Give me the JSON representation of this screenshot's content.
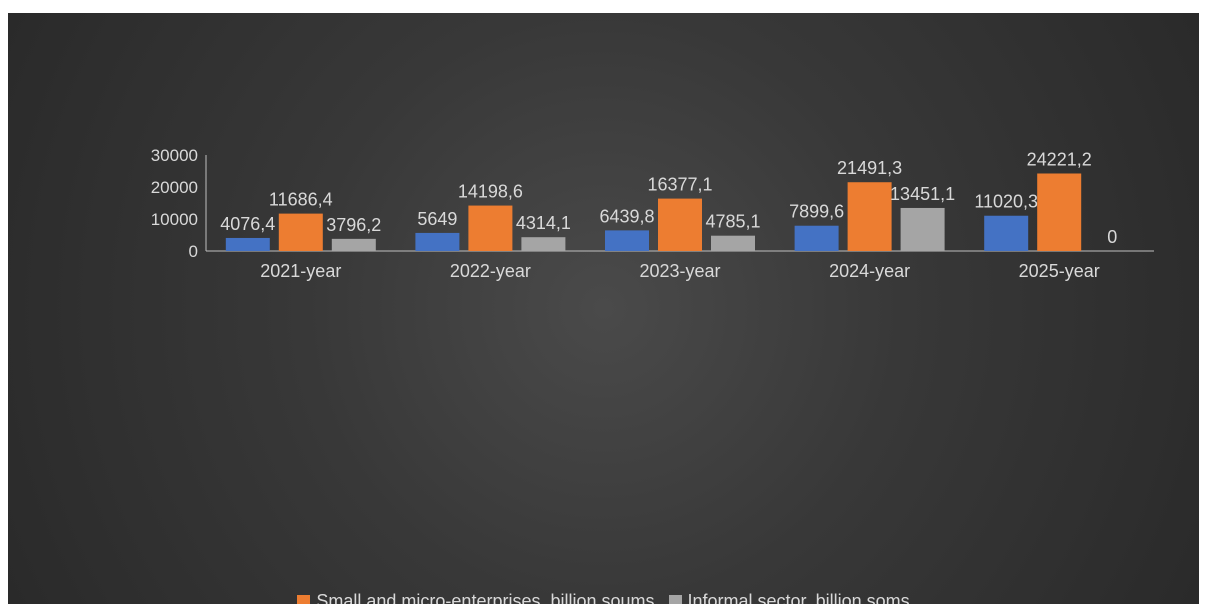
{
  "chart_data": {
    "type": "bar",
    "title": "",
    "xlabel": "",
    "ylabel": "",
    "categories": [
      "2021-year",
      "2022-year",
      "2023-year",
      "2024-year",
      "2025-year"
    ],
    "series": [
      {
        "values": [
          4076.4,
          5649,
          6439.8,
          7899.6,
          11020.3
        ],
        "labels": [
          "4076,4",
          "5649",
          "6439,8",
          "7899,6",
          "11020,3"
        ],
        "color": "#4472c4"
      },
      {
        "name": "Small and micro-enterprises, billion soums",
        "values": [
          11686.4,
          14198.6,
          16377.1,
          21491.3,
          24221.2
        ],
        "labels": [
          "11686,4",
          "14198,6",
          "16377,1",
          "21491,3",
          "24221,2"
        ],
        "color": "#ed7d31"
      },
      {
        "name": "Informal sector, billion soms",
        "values": [
          3796.2,
          4314.1,
          4785.1,
          13451.1,
          0
        ],
        "labels": [
          "3796,2",
          "4314,1",
          "4785,1",
          "13451,1",
          "0"
        ],
        "color": "#a5a5a5"
      }
    ],
    "yticks": [
      "0",
      "10000",
      "20000",
      "30000"
    ],
    "ylim": [
      0,
      30000
    ],
    "grid": false,
    "legend_position": "bottom"
  },
  "legend": {
    "items": [
      {
        "label": "Small and micro-enterprises, billion soums",
        "color": "#ed7d31"
      },
      {
        "label": "Informal sector, billion soms",
        "color": "#a5a5a5"
      }
    ]
  }
}
